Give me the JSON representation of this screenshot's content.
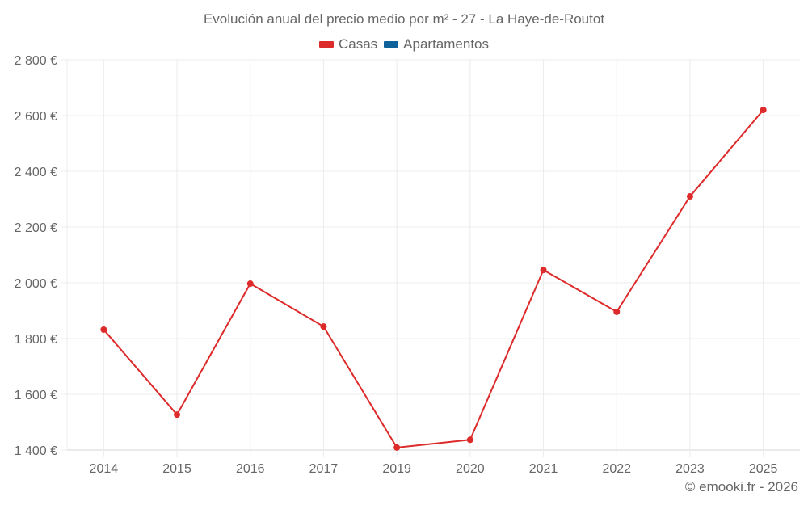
{
  "title": "Evolución anual del precio medio por m² - 27 - La Haye-de-Routot",
  "legend": [
    {
      "label": "Casas",
      "color": "#dd2a2a"
    },
    {
      "label": "Apartamentos",
      "color": "#0f6199"
    }
  ],
  "credit": "© emooki.fr - 2026",
  "chart_data": {
    "type": "line",
    "title": "Evolución anual del precio medio por m² - 27 - La Haye-de-Routot",
    "xlabel": "",
    "ylabel": "",
    "categories": [
      "2014",
      "2015",
      "2016",
      "2017",
      "2019",
      "2020",
      "2021",
      "2022",
      "2023",
      "2025"
    ],
    "series": [
      {
        "name": "Casas",
        "color": "#dd2a2a",
        "values": [
          1832,
          1527,
          1997,
          1843,
          1409,
          1437,
          2046,
          1896,
          2310,
          2620
        ]
      },
      {
        "name": "Apartamentos",
        "color": "#0f6199",
        "values": []
      }
    ],
    "ylim": [
      1400,
      2800
    ],
    "yticks": [
      1400,
      1600,
      1800,
      2000,
      2200,
      2400,
      2600,
      2800
    ],
    "ytick_labels": [
      "1 400 €",
      "1 600 €",
      "1 800 €",
      "2 000 €",
      "2 200 €",
      "2 400 €",
      "2 600 €",
      "2 800 €"
    ],
    "grid": true,
    "legend_position": "top"
  }
}
